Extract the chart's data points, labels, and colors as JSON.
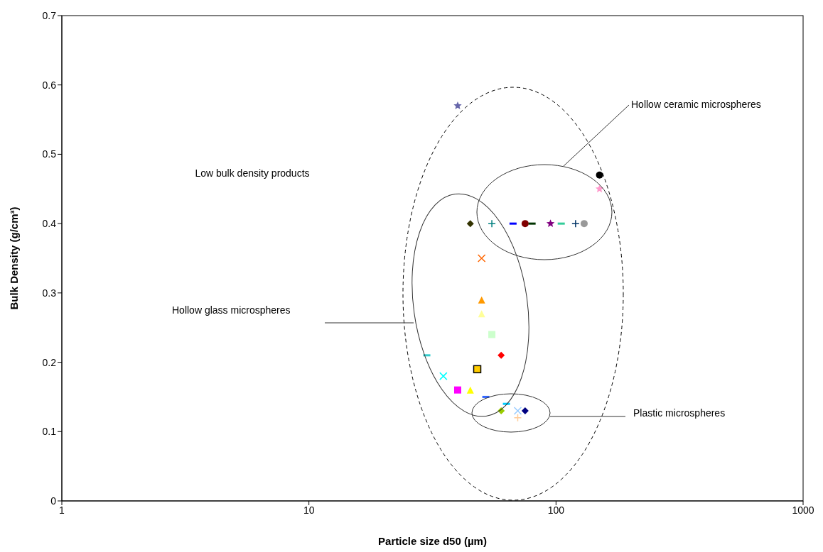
{
  "chart_data": {
    "type": "scatter",
    "xlabel": "Particle size d50 (µm)",
    "ylabel": "Bulk Density (g/cm³)",
    "log": "x",
    "grid": false,
    "legend": false,
    "xlim": [
      1,
      1000
    ],
    "xticks": [
      1,
      10,
      100,
      1000
    ],
    "ylim": [
      0,
      0.7
    ],
    "yticks": [
      0,
      0.1,
      0.2,
      0.3,
      0.4,
      0.5,
      0.6,
      0.7
    ],
    "annotations": [
      "Hollow ceramic microspheres",
      "Low bulk density products",
      "Hollow glass microspheres",
      "Plastic microspheres"
    ],
    "series": [
      {
        "color": "#6666aa",
        "marker": "star",
        "x": [
          40
        ],
        "values": [
          0.57
        ]
      },
      {
        "color": "#000000",
        "marker": "circle",
        "x": [
          150
        ],
        "values": [
          0.47
        ]
      },
      {
        "color": "#ff99cc",
        "marker": "star",
        "x": [
          150
        ],
        "values": [
          0.45
        ]
      },
      {
        "color": "#333300",
        "marker": "diamond",
        "x": [
          45
        ],
        "values": [
          0.4
        ]
      },
      {
        "color": "#008080",
        "marker": "plus",
        "x": [
          55
        ],
        "values": [
          0.4
        ]
      },
      {
        "color": "#0000ff",
        "x": [
          67
        ],
        "values": [
          0.4
        ]
      },
      {
        "color": "#800000",
        "marker": "circle",
        "x": [
          75
        ],
        "values": [
          0.4
        ]
      },
      {
        "color": "#003300",
        "x": [
          80
        ],
        "values": [
          0.4
        ]
      },
      {
        "color": "#800080",
        "marker": "star",
        "x": [
          95
        ],
        "values": [
          0.4
        ]
      },
      {
        "color": "#33cc99",
        "x": [
          105
        ],
        "values": [
          0.4
        ]
      },
      {
        "color": "#003366",
        "marker": "plus",
        "x": [
          120
        ],
        "values": [
          0.4
        ]
      },
      {
        "color": "#999999",
        "marker": "circle",
        "x": [
          130
        ],
        "values": [
          0.4
        ]
      },
      {
        "color": "#ff6600",
        "marker": "cross",
        "x": [
          50
        ],
        "values": [
          0.35
        ]
      },
      {
        "color": "#ff9900",
        "marker": "triangle",
        "x": [
          50
        ],
        "values": [
          0.29
        ]
      },
      {
        "color": "#ffff99",
        "marker": "triangle",
        "x": [
          50
        ],
        "values": [
          0.27
        ]
      },
      {
        "color": "#ccffcc",
        "marker": "square",
        "x": [
          55
        ],
        "values": [
          0.24
        ]
      },
      {
        "color": "#ff0000",
        "marker": "diamond",
        "x": [
          60
        ],
        "values": [
          0.21
        ]
      },
      {
        "color": "#33cccc",
        "x": [
          30
        ],
        "values": [
          0.21
        ]
      },
      {
        "color": "#ffcc00",
        "marker": "square",
        "x": [
          48
        ],
        "values": [
          0.19
        ]
      },
      {
        "color": "#00ffff",
        "marker": "cross",
        "x": [
          35
        ],
        "values": [
          0.18
        ]
      },
      {
        "color": "#ff00ff",
        "marker": "square",
        "x": [
          40
        ],
        "values": [
          0.16
        ]
      },
      {
        "color": "#ffff00",
        "marker": "triangle",
        "x": [
          45
        ],
        "values": [
          0.16
        ]
      },
      {
        "color": "#3366ff",
        "x": [
          52
        ],
        "values": [
          0.15
        ]
      },
      {
        "color": "#00ccff",
        "x": [
          63
        ],
        "values": [
          0.14
        ]
      },
      {
        "color": "#99cc00",
        "marker": "diamond",
        "x": [
          60
        ],
        "values": [
          0.13
        ]
      },
      {
        "color": "#99ccff",
        "marker": "cross",
        "x": [
          70
        ],
        "values": [
          0.13
        ]
      },
      {
        "color": "#000080",
        "marker": "diamond",
        "x": [
          75
        ],
        "values": [
          0.13
        ]
      },
      {
        "color": "#ffcc99",
        "marker": "plus",
        "x": [
          70
        ],
        "values": [
          0.12
        ]
      }
    ]
  }
}
